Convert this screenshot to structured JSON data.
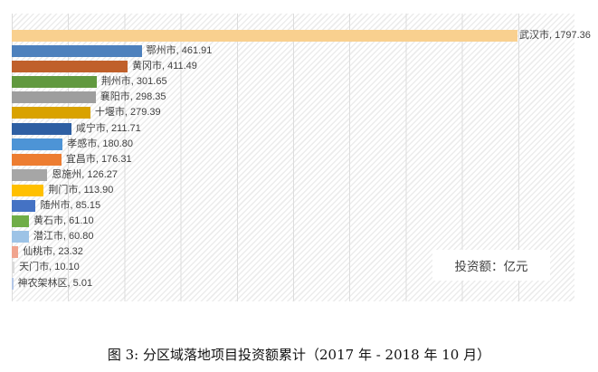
{
  "figure": {
    "caption": "图 3: 分区域落地项目投资额累计（2017 年 - 2018 年 10 月）"
  },
  "legend": {
    "label": "投资额：亿元"
  },
  "chart_data": {
    "type": "bar",
    "orientation": "horizontal",
    "title": "",
    "xlabel": "",
    "ylabel": "",
    "unit": "亿元",
    "xlim": [
      0,
      2000
    ],
    "gridline_interval": 200,
    "grid": true,
    "legend_label": "投资额：亿元",
    "categories": [
      "武汉市",
      "鄂州市",
      "黄冈市",
      "荆州市",
      "襄阳市",
      "十堰市",
      "咸宁市",
      "孝感市",
      "宜昌市",
      "恩施州",
      "荆门市",
      "随州市",
      "黄石市",
      "潜江市",
      "仙桃市",
      "天门市",
      "神农架林区"
    ],
    "values": [
      1797.36,
      461.91,
      411.49,
      301.65,
      298.35,
      279.39,
      211.71,
      180.8,
      176.31,
      126.27,
      113.9,
      85.15,
      61.1,
      60.8,
      23.32,
      10.1,
      5.01
    ],
    "labels": [
      "武汉市, 1797.36",
      "鄂州市, 461.91",
      "黄冈市, 411.49",
      "荆州市, 301.65",
      "襄阳市, 298.35",
      "十堰市, 279.39",
      "咸宁市, 211.71",
      "孝感市, 180.80",
      "宜昌市, 176.31",
      "恩施州, 126.27",
      "荆门市, 113.90",
      "随州市, 85.15",
      "黄石市, 61.10",
      "潜江市, 60.80",
      "仙桃市, 23.32",
      "天门市, 10.10",
      "神农架林区, 5.01"
    ],
    "bar_colors": [
      "#F9D08F",
      "#4E81BD",
      "#C0602B",
      "#61993F",
      "#9E9E9E",
      "#D9A200",
      "#2E5FA3",
      "#4D94D6",
      "#ED7D31",
      "#A6A6A6",
      "#FFC000",
      "#4472C4",
      "#70AD47",
      "#9DC3E6",
      "#F0A48E",
      "#DBDBDB",
      "#B4C7E7"
    ]
  }
}
